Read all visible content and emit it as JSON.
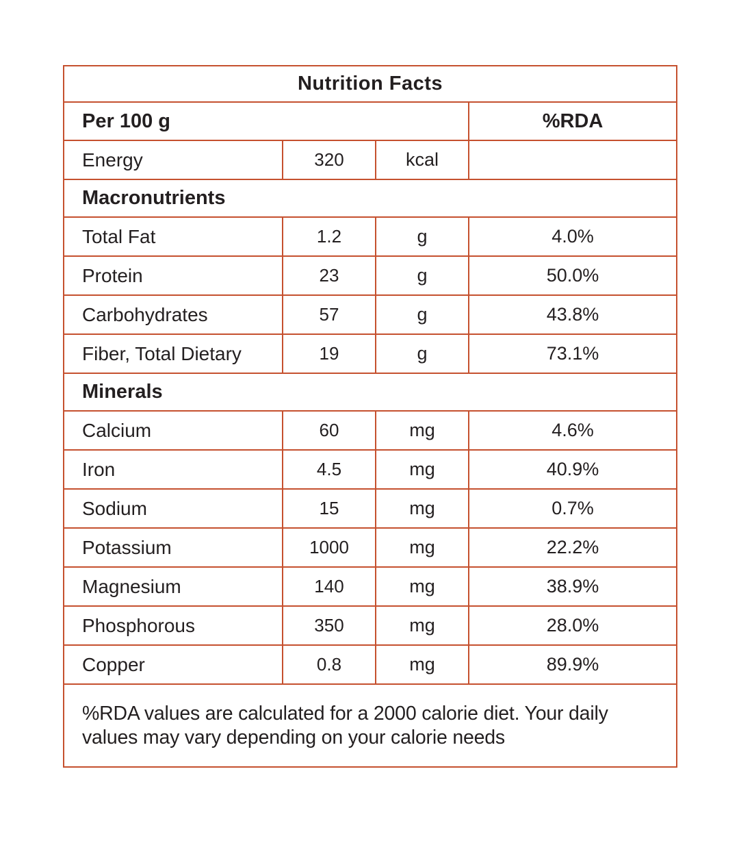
{
  "colors": {
    "border": "#c5502e",
    "text": "#231f20",
    "background": "#ffffff"
  },
  "table": {
    "title": "Nutrition Facts",
    "header": {
      "serving_label": "Per 100 g",
      "rda_label": "%RDA"
    },
    "energy": {
      "label": "Energy",
      "value": "320",
      "unit": "kcal",
      "rda": ""
    },
    "sections": [
      {
        "name": "Macronutrients",
        "rows": [
          {
            "label": "Total Fat",
            "value": "1.2",
            "unit": "g",
            "rda": "4.0%"
          },
          {
            "label": "Protein",
            "value": "23",
            "unit": "g",
            "rda": "50.0%"
          },
          {
            "label": "Carbohydrates",
            "value": "57",
            "unit": "g",
            "rda": "43.8%"
          },
          {
            "label": "Fiber, Total Dietary",
            "value": "19",
            "unit": "g",
            "rda": "73.1%"
          }
        ]
      },
      {
        "name": "Minerals",
        "rows": [
          {
            "label": "Calcium",
            "value": "60",
            "unit": "mg",
            "rda": "4.6%"
          },
          {
            "label": "Iron",
            "value": "4.5",
            "unit": "mg",
            "rda": "40.9%"
          },
          {
            "label": "Sodium",
            "value": "15",
            "unit": "mg",
            "rda": "0.7%"
          },
          {
            "label": "Potassium",
            "value": "1000",
            "unit": "mg",
            "rda": "22.2%"
          },
          {
            "label": "Magnesium",
            "value": "140",
            "unit": "mg",
            "rda": "38.9%"
          },
          {
            "label": "Phosphorous",
            "value": "350",
            "unit": "mg",
            "rda": "28.0%"
          },
          {
            "label": "Copper",
            "value": "0.8",
            "unit": "mg",
            "rda": "89.9%"
          }
        ]
      }
    ],
    "footnote": "%RDA values are calculated for a 2000 calorie diet. Your daily values may vary depending on your calorie needs"
  }
}
